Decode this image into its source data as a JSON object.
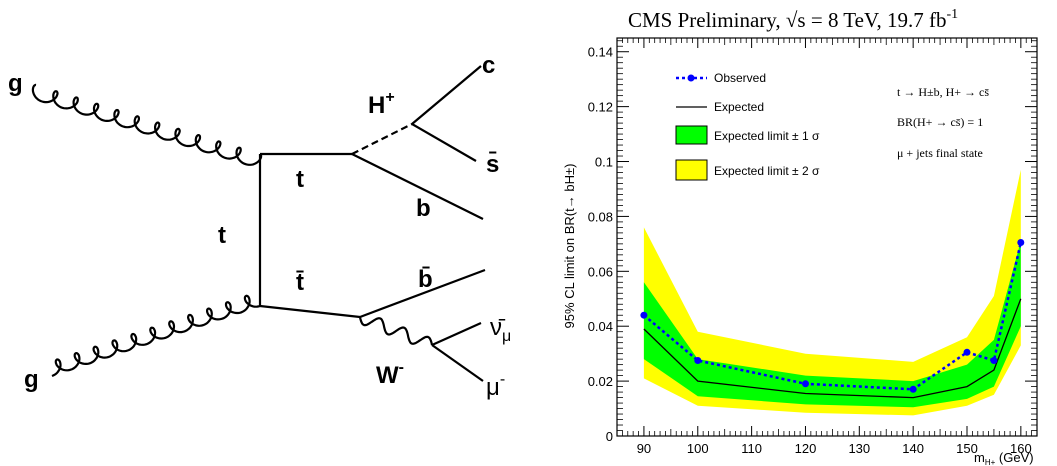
{
  "diagram": {
    "labels": {
      "g_top": "g",
      "g_bottom": "g",
      "t_vertical": "t",
      "t_upper": "t",
      "tbar_lower": "t̄",
      "h_plus": "H",
      "h_plus_sup": "+",
      "c": "c",
      "sbar": "s̄",
      "b": "b",
      "bbar": "b̄",
      "w_minus": "W",
      "w_minus_sup": "-",
      "nubar_mu": "ν̄",
      "nubar_mu_sub": "μ",
      "mu_minus": "μ",
      "mu_minus_sup": "-"
    }
  },
  "plot": {
    "header": {
      "text": "CMS Preliminary, ",
      "sqrt": "√",
      "s_eq": "s = 8 TeV,  19.7 fb",
      "sup": "-1"
    },
    "ylabel": "95% CL limit on BR(t→ bH±)",
    "xlabel_main": "m",
    "xlabel_sub": "H+",
    "xlabel_unit": " (GeV)",
    "legend": {
      "observed": "Observed",
      "expected": "Expected",
      "band1": "Expected limit ± 1 σ",
      "band2": "Expected limit ± 2 σ"
    },
    "annotations": {
      "process": "t → H±b, H+ → cs̄",
      "br": "BR(H+ → cs̄) = 1",
      "state": "μ + jets final state"
    },
    "colors": {
      "band1": "#00ff00",
      "band2": "#ffff00",
      "observed": "#0000ff",
      "expected": "#000000"
    }
  },
  "chart_data": {
    "type": "line",
    "x": [
      90,
      100,
      120,
      140,
      150,
      155,
      160
    ],
    "xlim": [
      85,
      163
    ],
    "ylim": [
      0,
      0.145
    ],
    "xticks": [
      90,
      100,
      110,
      120,
      130,
      140,
      150,
      160
    ],
    "yticks": [
      0,
      0.02,
      0.04,
      0.06,
      0.08,
      0.1,
      0.12,
      0.14
    ],
    "ytick_labels": [
      "0",
      "0.02",
      "0.04",
      "0.06",
      "0.08",
      "0.1",
      "0.12",
      "0.14"
    ],
    "series": [
      {
        "name": "Observed",
        "values": [
          0.044,
          0.0275,
          0.019,
          0.017,
          0.0305,
          0.0275,
          0.0705
        ]
      },
      {
        "name": "Expected",
        "values": [
          0.039,
          0.02,
          0.0155,
          0.014,
          0.018,
          0.024,
          0.05
        ]
      }
    ],
    "bands": [
      {
        "name": "Expected limit ± 2 σ",
        "lower": [
          0.021,
          0.011,
          0.0085,
          0.0075,
          0.011,
          0.015,
          0.033
        ],
        "upper": [
          0.076,
          0.038,
          0.03,
          0.027,
          0.036,
          0.051,
          0.097
        ]
      },
      {
        "name": "Expected limit ± 1 σ",
        "lower": [
          0.028,
          0.0145,
          0.0115,
          0.0105,
          0.0135,
          0.018,
          0.04
        ],
        "upper": [
          0.056,
          0.028,
          0.022,
          0.02,
          0.026,
          0.035,
          0.071
        ]
      }
    ],
    "legend_position": "top-left",
    "grid": false
  }
}
